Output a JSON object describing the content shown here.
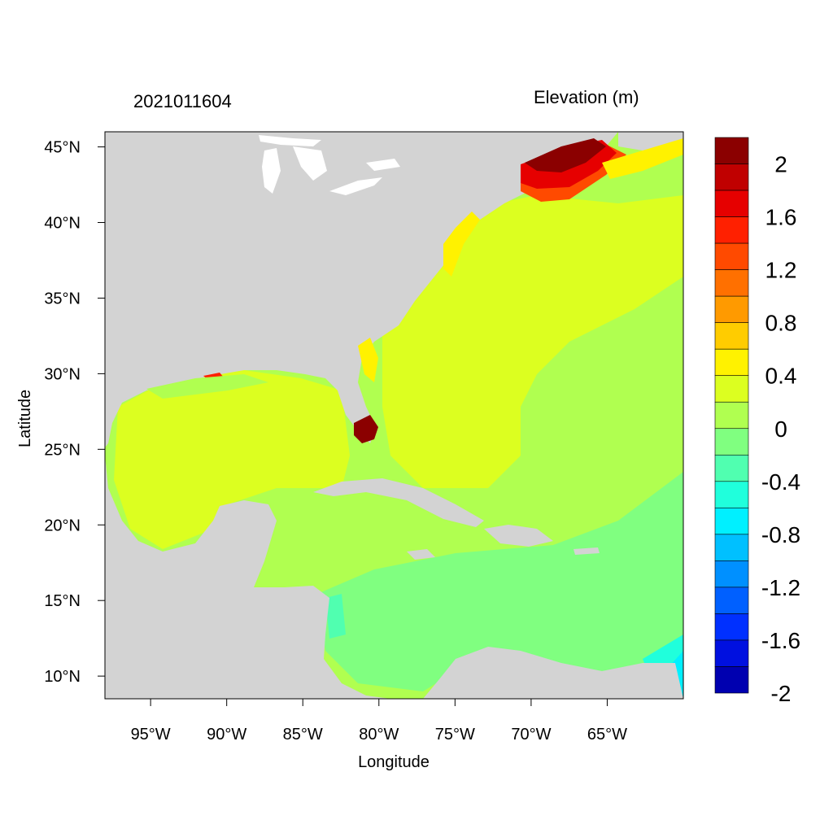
{
  "header": {
    "time_label": "2021011604",
    "variable_label": "Elevation (m)"
  },
  "axes": {
    "xlabel": "Longitude",
    "ylabel": "Latitude",
    "x_ticks": [
      "95°W",
      "90°W",
      "85°W",
      "80°W",
      "75°W",
      "70°W",
      "65°W"
    ],
    "x_tick_values": [
      -95,
      -90,
      -85,
      -80,
      -75,
      -70,
      -65
    ],
    "y_ticks": [
      "45°N",
      "40°N",
      "35°N",
      "30°N",
      "25°N",
      "20°N",
      "15°N",
      "10°N"
    ],
    "y_tick_values": [
      45,
      40,
      35,
      30,
      25,
      20,
      15,
      10
    ],
    "lon_range": [
      -98,
      -60
    ],
    "lat_range": [
      8.5,
      46
    ]
  },
  "colorbar": {
    "labels": [
      "2",
      "1.6",
      "1.2",
      "0.8",
      "0.4",
      "0",
      "-0.4",
      "-0.8",
      "-1.2",
      "-1.6",
      "-2"
    ],
    "colors": [
      "#8b0000",
      "#c00000",
      "#e60000",
      "#ff2000",
      "#ff4a00",
      "#ff7000",
      "#ff9a00",
      "#ffcc00",
      "#fff200",
      "#dcff20",
      "#b0ff50",
      "#80ff80",
      "#50ffb0",
      "#20ffdc",
      "#00f0ff",
      "#00c0ff",
      "#0090ff",
      "#0060ff",
      "#0030ff",
      "#0010e0",
      "#0000b0"
    ]
  },
  "map_colors": {
    "land": "#d3d3d3",
    "lakes": "#ffffff"
  }
}
